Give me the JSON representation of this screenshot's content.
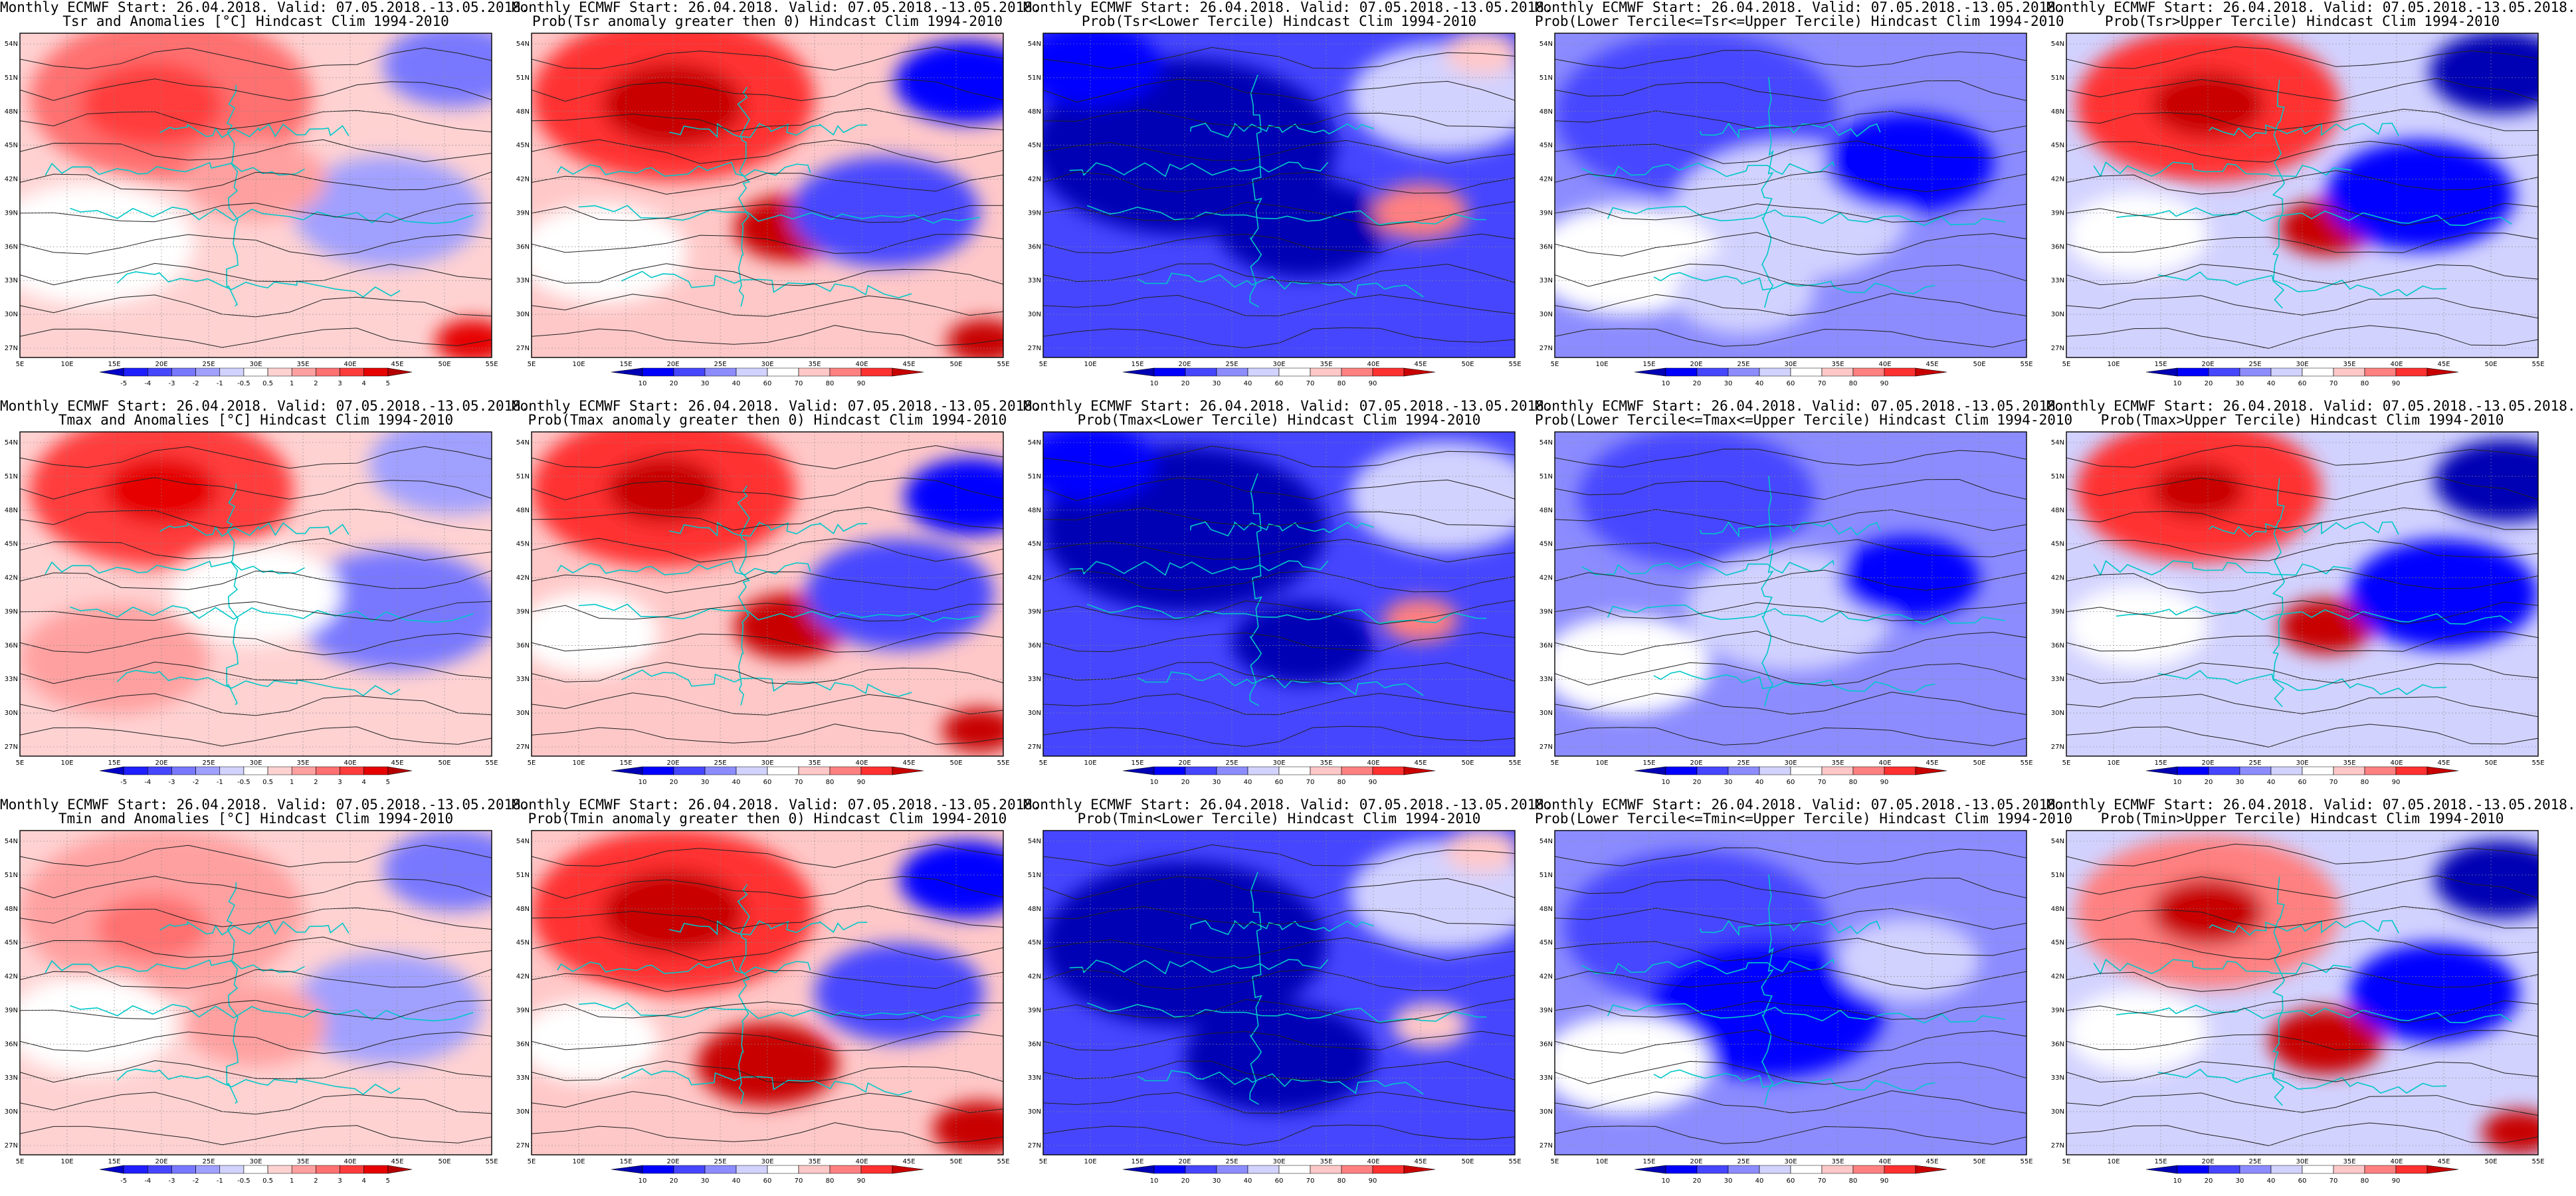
{
  "page": {
    "background": "#ffffff",
    "columns": 5,
    "rows": 3
  },
  "map_axes": {
    "lat_labels": [
      "54N",
      "51N",
      "48N",
      "45N",
      "42N",
      "39N",
      "36N",
      "33N",
      "30N",
      "27N"
    ],
    "lon_labels": [
      "5E",
      "10E",
      "15E",
      "20E",
      "25E",
      "30E",
      "35E",
      "40E",
      "45E",
      "50E",
      "55E"
    ]
  },
  "colorbars": {
    "anomaly": {
      "labels": [
        "-5",
        "-4",
        "-3",
        "-2",
        "-1",
        "-0.5",
        "0.5",
        "1",
        "2",
        "3",
        "4",
        "5"
      ],
      "colors": [
        "#0000c8",
        "#1e1eff",
        "#4646ff",
        "#7878ff",
        "#a0a0ff",
        "#d2d2ff",
        "#ffffff",
        "#ffd2d2",
        "#ffa0a0",
        "#ff7070",
        "#ff3c3c",
        "#e60000",
        "#b40000"
      ]
    },
    "probability": {
      "labels": [
        "10",
        "20",
        "30",
        "40",
        "60",
        "70",
        "80",
        "90"
      ],
      "colors": [
        "#0000b4",
        "#0000ff",
        "#4646ff",
        "#8c8cff",
        "#d2d2ff",
        "#ffffff",
        "#ffc8c8",
        "#ff8080",
        "#ff3030",
        "#c80000"
      ]
    }
  },
  "panels": [
    {
      "title_line1": "Monthly ECMWF Start: 26.04.2018. Valid: 07.05.2018.-13.05.2018.",
      "title_line2": "Tsr and Anomalies [°C] Hindcast Clim 1994-2010",
      "colorbar": "anomaly",
      "style": "anom-tsr"
    },
    {
      "title_line1": "Monthly ECMWF Start: 26.04.2018. Valid: 07.05.2018.-13.05.2018.",
      "title_line2": "Prob(Tsr anomaly greater then 0) Hindcast Clim 1994-2010",
      "colorbar": "probability",
      "style": "prob-gt0-tsr"
    },
    {
      "title_line1": "Monthly ECMWF Start: 26.04.2018. Valid: 07.05.2018.-13.05.2018.",
      "title_line2": "Prob(Tsr<Lower Tercile) Hindcast Clim 1994-2010",
      "colorbar": "probability",
      "style": "prob-lower-tsr"
    },
    {
      "title_line1": "Monthly ECMWF Start: 26.04.2018. Valid: 07.05.2018.-13.05.2018.",
      "title_line2": "Prob(Lower Tercile<=Tsr<=Upper Tercile) Hindcast Clim 1994-2010",
      "colorbar": "probability",
      "style": "prob-mid-tsr"
    },
    {
      "title_line1": "Monthly ECMWF Start: 26.04.2018. Valid: 07.05.2018.-13.05.2018.",
      "title_line2": "Prob(Tsr>Upper Tercile) Hindcast Clim 1994-2010",
      "colorbar": "probability",
      "style": "prob-upper-tsr"
    },
    {
      "title_line1": "Monthly ECMWF Start: 26.04.2018. Valid: 07.05.2018.-13.05.2018.",
      "title_line2": "Tmax and Anomalies [°C] Hindcast Clim 1994-2010",
      "colorbar": "anomaly",
      "style": "anom-tmax"
    },
    {
      "title_line1": "Monthly ECMWF Start: 26.04.2018. Valid: 07.05.2018.-13.05.2018.",
      "title_line2": "Prob(Tmax anomaly greater then 0) Hindcast Clim 1994-2010",
      "colorbar": "probability",
      "style": "prob-gt0-tmax"
    },
    {
      "title_line1": "Monthly ECMWF Start: 26.04.2018. Valid: 07.05.2018.-13.05.2018.",
      "title_line2": "Prob(Tmax<Lower Tercile) Hindcast Clim 1994-2010",
      "colorbar": "probability",
      "style": "prob-lower-tmax"
    },
    {
      "title_line1": "Monthly ECMWF Start: 26.04.2018. Valid: 07.05.2018.-13.05.2018.",
      "title_line2": "Prob(Lower Tercile<=Tmax<=Upper Tercile) Hindcast Clim 1994-2010",
      "colorbar": "probability",
      "style": "prob-mid-tmax"
    },
    {
      "title_line1": "Monthly ECMWF Start: 26.04.2018. Valid: 07.05.2018.-13.05.2018.",
      "title_line2": "Prob(Tmax>Upper Tercile) Hindcast Clim 1994-2010",
      "colorbar": "probability",
      "style": "prob-upper-tmax"
    },
    {
      "title_line1": "Monthly ECMWF Start: 26.04.2018. Valid: 07.05.2018.-13.05.2018.",
      "title_line2": "Tmin and Anomalies [°C] Hindcast Clim 1994-2010",
      "colorbar": "anomaly",
      "style": "anom-tmin"
    },
    {
      "title_line1": "Monthly ECMWF Start: 26.04.2018. Valid: 07.05.2018.-13.05.2018.",
      "title_line2": "Prob(Tmin anomaly greater then 0) Hindcast Clim 1994-2010",
      "colorbar": "probability",
      "style": "prob-gt0-tmin"
    },
    {
      "title_line1": "Monthly ECMWF Start: 26.04.2018. Valid: 07.05.2018.-13.05.2018.",
      "title_line2": "Prob(Tmin<Lower Tercile) Hindcast Clim 1994-2010",
      "colorbar": "probability",
      "style": "prob-lower-tmin"
    },
    {
      "title_line1": "Monthly ECMWF Start: 26.04.2018. Valid: 07.05.2018.-13.05.2018.",
      "title_line2": "Prob(Lower Tercile<=Tmin<=Upper Tercile) Hindcast Clim 1994-2010",
      "colorbar": "probability",
      "style": "prob-mid-tmin"
    },
    {
      "title_line1": "Monthly ECMWF Start: 26.04.2018. Valid: 07.05.2018.-13.05.2018.",
      "title_line2": "Prob(Tmin>Upper Tercile) Hindcast Clim 1994-2010",
      "colorbar": "probability",
      "style": "prob-upper-tmin"
    }
  ]
}
